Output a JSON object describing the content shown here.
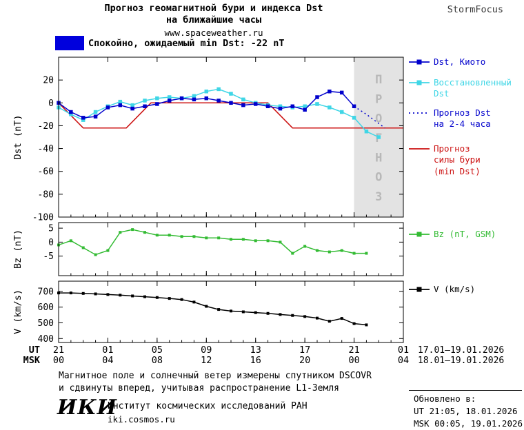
{
  "header": {
    "title_line1": "Прогноз геомагнитной бури и индекса Dst",
    "title_line2": "на ближайшие часы",
    "site": "www.spaceweather.ru",
    "brand": "StormFocus"
  },
  "status_banner": {
    "label": "Спокойно, ожидаемый min Dst: -22 nT",
    "color": "#0000dd"
  },
  "chart_data": [
    {
      "type": "line",
      "ylabel": "Dst (nT)",
      "xlim": [
        0,
        28
      ],
      "ylim": [
        -100,
        40
      ],
      "yticks": [
        20,
        0,
        -20,
        -40,
        -60,
        -80,
        -100
      ],
      "xticks": [
        0,
        4,
        8,
        12,
        16,
        20,
        24,
        28
      ],
      "x_unit": "hours since 17.01.2026 21:00 UT",
      "grid": false,
      "legend_position": "right",
      "forecast_region": {
        "start": 24,
        "end": 28,
        "label": "ПРОГНОЗ",
        "fill": "#e3e3e3",
        "text_color": "#b8b8b8"
      },
      "series": [
        {
          "name": "Dst, Киото",
          "color": "#0000cc",
          "marker": true,
          "dash": null,
          "x": [
            0,
            1,
            2,
            3,
            4,
            5,
            6,
            7,
            8,
            9,
            10,
            11,
            12,
            13,
            14,
            15,
            16,
            17,
            18,
            19,
            20,
            21,
            22,
            23,
            24
          ],
          "y": [
            0,
            -8,
            -13,
            -12,
            -4,
            -2,
            -5,
            -3,
            -1,
            2,
            4,
            3,
            4,
            2,
            0,
            -2,
            -1,
            -3,
            -5,
            -3,
            -6,
            5,
            10,
            9,
            -3
          ]
        },
        {
          "name": "Восстановленный Dst",
          "color": "#3fd6e6",
          "marker": true,
          "dash": null,
          "x": [
            0,
            1,
            2,
            3,
            4,
            5,
            6,
            7,
            8,
            9,
            10,
            11,
            12,
            13,
            14,
            15,
            16,
            17,
            18,
            19,
            20,
            21,
            22,
            23,
            24,
            25,
            26
          ],
          "y": [
            -4,
            -10,
            -15,
            -8,
            -3,
            1,
            -2,
            2,
            4,
            5,
            4,
            6,
            10,
            12,
            8,
            3,
            0,
            -2,
            -3,
            -4,
            -3,
            -1,
            -4,
            -8,
            -13,
            -25,
            -30
          ]
        },
        {
          "name": "Прогноз Dst на 2-4 часа",
          "color": "#0000cc",
          "marker": false,
          "dash": "2,4",
          "x": [
            24,
            25,
            26.5
          ],
          "y": [
            -3,
            -10,
            -22
          ]
        },
        {
          "name": "Прогноз силы бури (min Dst)",
          "color": "#cc1111",
          "marker": false,
          "dash": null,
          "x": [
            0,
            2,
            5.5,
            7.5,
            17,
            19,
            28
          ],
          "y": [
            0,
            -22,
            -22,
            0,
            0,
            -22,
            -22
          ]
        }
      ]
    },
    {
      "type": "line",
      "ylabel": "Bz (nT)",
      "xlim": [
        0,
        28
      ],
      "ylim": [
        -12,
        7
      ],
      "yticks": [
        5,
        0,
        -5
      ],
      "xticks": [
        0,
        4,
        8,
        12,
        16,
        20,
        24,
        28
      ],
      "grid": false,
      "series": [
        {
          "name": "Bz (nT, GSM)",
          "color": "#33bb33",
          "marker": true,
          "dash": null,
          "x": [
            0,
            1,
            2,
            3,
            4,
            5,
            6,
            7,
            8,
            9,
            10,
            11,
            12,
            13,
            14,
            15,
            16,
            17,
            18,
            19,
            20,
            21,
            22,
            23,
            24,
            25
          ],
          "y": [
            -1,
            0.5,
            -2,
            -4.5,
            -3,
            3.5,
            4.5,
            3.5,
            2.5,
            2.5,
            2,
            2,
            1.5,
            1.5,
            1,
            1,
            0.5,
            0.5,
            0,
            -4,
            -1.5,
            -3,
            -3.5,
            -3,
            -4,
            -4
          ]
        }
      ]
    },
    {
      "type": "line",
      "ylabel": "V (km/s)",
      "xlim": [
        0,
        28
      ],
      "ylim": [
        375,
        765
      ],
      "yticks": [
        700,
        600,
        500,
        400
      ],
      "xticks": [
        0,
        4,
        8,
        12,
        16,
        20,
        24,
        28
      ],
      "grid": false,
      "series": [
        {
          "name": "V (km/s)",
          "color": "#000000",
          "marker": true,
          "dash": null,
          "x": [
            0,
            1,
            2,
            3,
            4,
            5,
            6,
            7,
            8,
            9,
            10,
            11,
            12,
            13,
            14,
            15,
            16,
            17,
            18,
            19,
            20,
            21,
            22,
            23,
            24,
            25
          ],
          "y": [
            690,
            690,
            687,
            684,
            680,
            676,
            671,
            666,
            661,
            655,
            648,
            632,
            605,
            585,
            575,
            570,
            565,
            560,
            553,
            547,
            540,
            530,
            510,
            528,
            495,
            487
          ]
        }
      ]
    }
  ],
  "xaxis": {
    "ut_label": "UT",
    "msk_label": "MSK",
    "ut_ticks": [
      "21",
      "01",
      "05",
      "09",
      "13",
      "17",
      "21",
      "01"
    ],
    "msk_ticks": [
      "00",
      "04",
      "08",
      "12",
      "16",
      "20",
      "00",
      "04"
    ],
    "ut_dates": "17.01–19.01.2026",
    "msk_dates": "18.01–19.01.2026"
  },
  "footer": {
    "note_line1": "Магнитное поле и солнечный ветер измерены спутником DSCOVR",
    "note_line2": "и сдвинуты вперед, учитывая распространение L1-Земля",
    "updated_label": "Обновлено в:",
    "updated_ut": "UT  21:05, 18.01.2026",
    "updated_msk": "MSK 00:05, 19.01.2026",
    "logo": "ИКИ",
    "institute": "Институт космических исследований РАН",
    "site": "iki.cosmos.ru"
  }
}
